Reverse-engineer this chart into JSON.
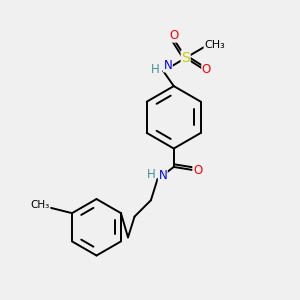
{
  "background_color": "#f0f0f0",
  "fig_size": [
    3.0,
    3.0
  ],
  "dpi": 100,
  "atom_colors": {
    "C": "#000000",
    "N": "#0000ff",
    "O": "#ff0000",
    "S": "#cccc00",
    "H": "#4a9090"
  },
  "bond_color": "#000000",
  "bond_width": 1.4,
  "font_size": 8.5
}
